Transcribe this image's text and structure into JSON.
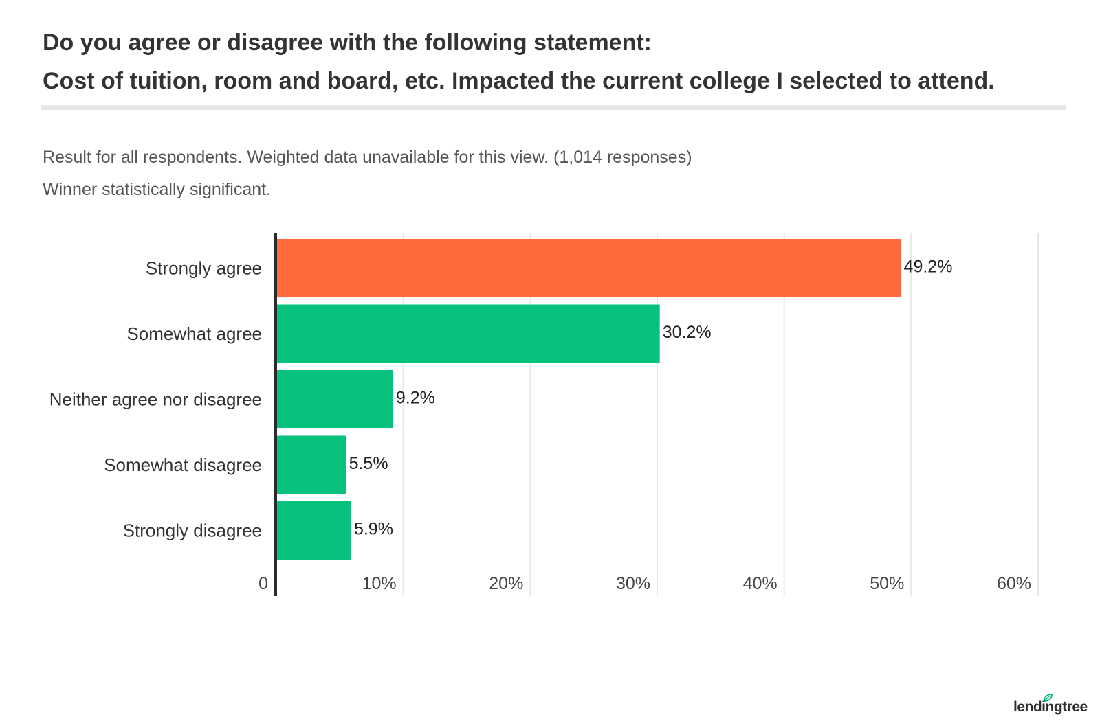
{
  "header": {
    "title_line1": "Do you agree or disagree with the following statement:",
    "title_line2": "Cost of tuition, room and board, etc. Impacted the current college I selected to attend.",
    "subtitle_line1": "Result for all respondents. Weighted data unavailable for this view. (1,014 responses)",
    "subtitle_line2": "Winner statistically significant."
  },
  "colors": {
    "highlight": "#ff6b3d",
    "bar": "#07c27c",
    "axis": "#2b2b2b",
    "grid": "#e7e7e7"
  },
  "chart_data": {
    "type": "bar",
    "orientation": "horizontal",
    "categories": [
      "Strongly agree",
      "Somewhat agree",
      "Neither agree nor disagree",
      "Somewhat disagree",
      "Strongly disagree"
    ],
    "values": [
      49.2,
      30.2,
      9.2,
      5.5,
      5.9
    ],
    "value_labels": [
      "49.2%",
      "30.2%",
      "9.2%",
      "5.5%",
      "5.9%"
    ],
    "highlighted_index": 0,
    "xlim": [
      0,
      60
    ],
    "ticks": [
      0,
      10,
      20,
      30,
      40,
      50,
      60
    ],
    "tick_labels": [
      "0",
      "10%",
      "20%",
      "30%",
      "40%",
      "50%",
      "60%"
    ],
    "grid": true
  },
  "footer": {
    "brand": "lendingtree"
  }
}
